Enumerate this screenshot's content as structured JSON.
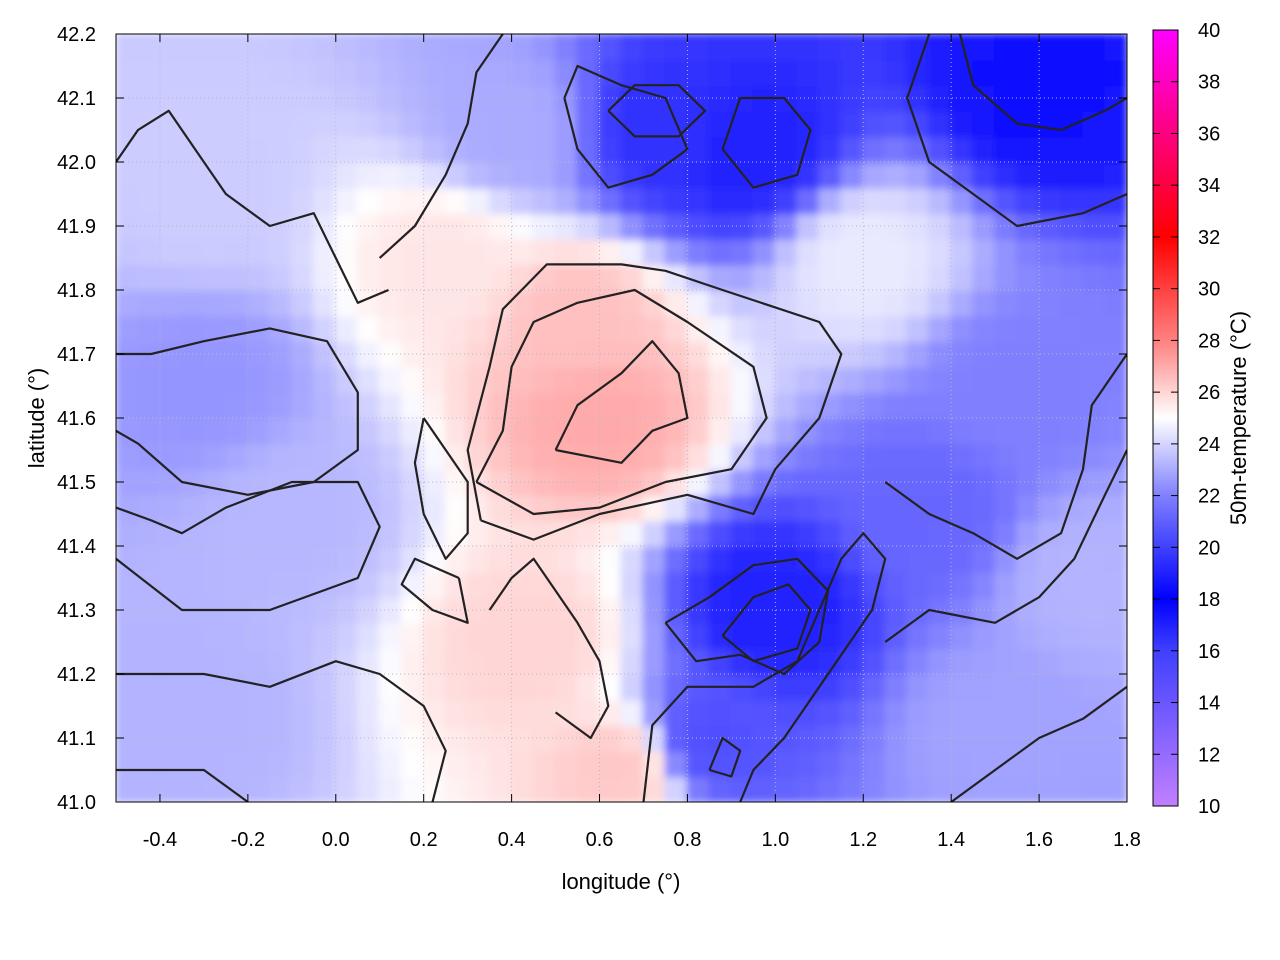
{
  "chart_data": {
    "type": "heatmap",
    "xlabel": "longitude (°)",
    "ylabel": "latitude (°)",
    "colorbar_label": "50m-temperature (°C)",
    "xlim": [
      -0.5,
      1.8
    ],
    "ylim": [
      41.0,
      42.2
    ],
    "x_ticks": [
      -0.4,
      -0.2,
      0.0,
      0.2,
      0.4,
      0.6,
      0.8,
      1.0,
      1.2,
      1.4,
      1.6,
      1.8
    ],
    "x_tick_labels": [
      "-0.4",
      "-0.2",
      "0.0",
      "0.2",
      "0.4",
      "0.6",
      "0.8",
      "1.0",
      "1.2",
      "1.4",
      "1.6",
      "1.8"
    ],
    "y_ticks": [
      41.0,
      41.1,
      41.2,
      41.3,
      41.4,
      41.5,
      41.6,
      41.7,
      41.8,
      41.9,
      42.0,
      42.1,
      42.2
    ],
    "y_tick_labels": [
      "41.0",
      "41.1",
      "41.2",
      "41.3",
      "41.4",
      "41.5",
      "41.6",
      "41.7",
      "41.8",
      "41.9",
      "42.0",
      "42.1",
      "42.2"
    ],
    "colorbar_range": [
      10,
      40
    ],
    "colorbar_ticks": [
      10,
      12,
      14,
      16,
      18,
      20,
      22,
      24,
      26,
      28,
      30,
      32,
      34,
      36,
      38,
      40
    ],
    "colorbar_tick_labels": [
      "10",
      "12",
      "14",
      "16",
      "18",
      "20",
      "22",
      "24",
      "26",
      "28",
      "30",
      "32",
      "34",
      "36",
      "38",
      "40"
    ],
    "colormap": [
      {
        "value": 10,
        "color": "#c080ff"
      },
      {
        "value": 16,
        "color": "#4040ff"
      },
      {
        "value": 18,
        "color": "#0000ff"
      },
      {
        "value": 22,
        "color": "#8080ff"
      },
      {
        "value": 25,
        "color": "#ffffff"
      },
      {
        "value": 28,
        "color": "#ff8080"
      },
      {
        "value": 32,
        "color": "#ff0000"
      },
      {
        "value": 36,
        "color": "#ff0080"
      },
      {
        "value": 40,
        "color": "#ff00ff"
      }
    ],
    "grid": true,
    "contour_color": "#222222",
    "sample_field": [
      {
        "lon": 0.6,
        "lat": 41.6,
        "temp": 27.0
      },
      {
        "lon": 0.55,
        "lat": 41.75,
        "temp": 26.5
      },
      {
        "lon": 0.25,
        "lat": 41.85,
        "temp": 25.6
      },
      {
        "lon": 0.45,
        "lat": 41.25,
        "temp": 26.0
      },
      {
        "lon": 0.65,
        "lat": 41.05,
        "temp": 26.3
      },
      {
        "lon": -0.3,
        "lat": 41.65,
        "temp": 22.5
      },
      {
        "lon": -0.3,
        "lat": 41.95,
        "temp": 23.8
      },
      {
        "lon": -0.1,
        "lat": 41.45,
        "temp": 23.3
      },
      {
        "lon": -0.35,
        "lat": 41.15,
        "temp": 23.2
      },
      {
        "lon": 1.0,
        "lat": 41.3,
        "temp": 19.0
      },
      {
        "lon": 0.85,
        "lat": 41.1,
        "temp": 20.5
      },
      {
        "lon": 1.35,
        "lat": 41.45,
        "temp": 21.2
      },
      {
        "lon": 1.55,
        "lat": 41.65,
        "temp": 22.0
      },
      {
        "lon": 1.6,
        "lat": 42.12,
        "temp": 18.5
      },
      {
        "lon": 0.75,
        "lat": 42.05,
        "temp": 19.5
      },
      {
        "lon": 0.95,
        "lat": 42.02,
        "temp": 19.0
      },
      {
        "lon": 0.4,
        "lat": 42.05,
        "temp": 23.0
      },
      {
        "lon": 1.5,
        "lat": 41.12,
        "temp": 22.8
      },
      {
        "lon": 1.2,
        "lat": 41.85,
        "temp": 24.5
      },
      {
        "lon": 1.7,
        "lat": 41.35,
        "temp": 23.2
      }
    ],
    "contours": [
      [
        [
          0.33,
          41.44
        ],
        [
          0.3,
          41.55
        ],
        [
          0.35,
          41.68
        ],
        [
          0.38,
          41.77
        ],
        [
          0.48,
          41.84
        ],
        [
          0.65,
          41.84
        ],
        [
          0.75,
          41.83
        ],
        [
          0.88,
          41.8
        ],
        [
          1.1,
          41.75
        ],
        [
          1.15,
          41.7
        ],
        [
          1.1,
          41.6
        ],
        [
          1.0,
          41.52
        ],
        [
          0.95,
          41.45
        ],
        [
          0.8,
          41.48
        ],
        [
          0.6,
          41.45
        ],
        [
          0.45,
          41.41
        ],
        [
          0.33,
          41.44
        ]
      ],
      [
        [
          0.32,
          41.5
        ],
        [
          0.38,
          41.58
        ],
        [
          0.4,
          41.68
        ],
        [
          0.45,
          41.75
        ],
        [
          0.55,
          41.78
        ],
        [
          0.68,
          41.8
        ],
        [
          0.8,
          41.75
        ],
        [
          0.95,
          41.68
        ],
        [
          0.98,
          41.6
        ],
        [
          0.9,
          41.52
        ],
        [
          0.75,
          41.5
        ],
        [
          0.6,
          41.46
        ],
        [
          0.45,
          41.45
        ],
        [
          0.32,
          41.5
        ]
      ],
      [
        [
          0.5,
          41.55
        ],
        [
          0.55,
          41.62
        ],
        [
          0.65,
          41.67
        ],
        [
          0.72,
          41.72
        ],
        [
          0.78,
          41.67
        ],
        [
          0.8,
          41.6
        ],
        [
          0.72,
          41.58
        ],
        [
          0.65,
          41.53
        ],
        [
          0.5,
          41.55
        ]
      ],
      [
        [
          -0.5,
          41.58
        ],
        [
          -0.45,
          41.56
        ],
        [
          -0.35,
          41.5
        ],
        [
          -0.2,
          41.48
        ],
        [
          -0.05,
          41.5
        ],
        [
          0.05,
          41.55
        ],
        [
          0.05,
          41.64
        ],
        [
          -0.02,
          41.72
        ],
        [
          -0.15,
          41.74
        ],
        [
          -0.3,
          41.72
        ],
        [
          -0.42,
          41.7
        ],
        [
          -0.5,
          41.7
        ]
      ],
      [
        [
          -0.5,
          41.38
        ],
        [
          -0.35,
          41.3
        ],
        [
          -0.15,
          41.3
        ],
        [
          0.05,
          41.35
        ],
        [
          0.1,
          41.43
        ],
        [
          0.05,
          41.5
        ],
        [
          -0.1,
          41.5
        ],
        [
          -0.25,
          41.46
        ],
        [
          -0.35,
          41.42
        ],
        [
          -0.42,
          41.44
        ],
        [
          -0.5,
          41.46
        ]
      ],
      [
        [
          0.75,
          41.28
        ],
        [
          0.85,
          41.32
        ],
        [
          0.95,
          41.37
        ],
        [
          1.05,
          41.38
        ],
        [
          1.12,
          41.33
        ],
        [
          1.1,
          41.25
        ],
        [
          1.02,
          41.2
        ],
        [
          0.92,
          41.23
        ],
        [
          0.82,
          41.22
        ],
        [
          0.75,
          41.28
        ]
      ],
      [
        [
          0.88,
          41.26
        ],
        [
          0.95,
          41.32
        ],
        [
          1.03,
          41.34
        ],
        [
          1.08,
          41.3
        ],
        [
          1.05,
          41.24
        ],
        [
          0.95,
          41.22
        ],
        [
          0.88,
          41.26
        ]
      ],
      [
        [
          0.7,
          41.0
        ],
        [
          0.72,
          41.12
        ],
        [
          0.8,
          41.18
        ],
        [
          0.95,
          41.18
        ],
        [
          1.05,
          41.22
        ],
        [
          1.1,
          41.3
        ],
        [
          1.15,
          41.38
        ],
        [
          1.2,
          41.42
        ],
        [
          1.25,
          41.38
        ],
        [
          1.22,
          41.3
        ],
        [
          1.12,
          41.2
        ],
        [
          1.02,
          41.1
        ],
        [
          0.95,
          41.05
        ],
        [
          0.92,
          41.0
        ]
      ],
      [
        [
          1.25,
          41.25
        ],
        [
          1.35,
          41.3
        ],
        [
          1.5,
          41.28
        ],
        [
          1.6,
          41.32
        ],
        [
          1.68,
          41.38
        ],
        [
          1.75,
          41.48
        ],
        [
          1.8,
          41.55
        ]
      ],
      [
        [
          1.25,
          41.5
        ],
        [
          1.35,
          41.45
        ],
        [
          1.45,
          41.42
        ],
        [
          1.55,
          41.38
        ],
        [
          1.65,
          41.42
        ],
        [
          1.7,
          41.52
        ],
        [
          1.72,
          41.62
        ],
        [
          1.8,
          41.7
        ]
      ],
      [
        [
          1.42,
          42.2
        ],
        [
          1.45,
          42.12
        ],
        [
          1.55,
          42.06
        ],
        [
          1.65,
          42.05
        ],
        [
          1.75,
          42.08
        ],
        [
          1.8,
          42.1
        ]
      ],
      [
        [
          1.35,
          42.2
        ],
        [
          1.3,
          42.1
        ],
        [
          1.35,
          42.0
        ],
        [
          1.45,
          41.95
        ],
        [
          1.55,
          41.9
        ],
        [
          1.7,
          41.92
        ],
        [
          1.8,
          41.95
        ]
      ],
      [
        [
          0.52,
          42.1
        ],
        [
          0.55,
          42.02
        ],
        [
          0.62,
          41.96
        ],
        [
          0.72,
          41.98
        ],
        [
          0.8,
          42.02
        ],
        [
          0.75,
          42.1
        ],
        [
          0.65,
          42.12
        ],
        [
          0.55,
          42.15
        ],
        [
          0.52,
          42.1
        ]
      ],
      [
        [
          0.62,
          42.08
        ],
        [
          0.68,
          42.04
        ],
        [
          0.78,
          42.04
        ],
        [
          0.84,
          42.08
        ],
        [
          0.78,
          42.12
        ],
        [
          0.68,
          42.12
        ],
        [
          0.62,
          42.08
        ]
      ],
      [
        [
          0.88,
          42.02
        ],
        [
          0.95,
          41.96
        ],
        [
          1.05,
          41.98
        ],
        [
          1.08,
          42.05
        ],
        [
          1.02,
          42.1
        ],
        [
          0.92,
          42.1
        ],
        [
          0.88,
          42.02
        ]
      ],
      [
        [
          0.1,
          41.85
        ],
        [
          0.18,
          41.9
        ],
        [
          0.25,
          41.98
        ],
        [
          0.3,
          42.06
        ],
        [
          0.32,
          42.14
        ],
        [
          0.38,
          42.2
        ]
      ],
      [
        [
          -0.5,
          42.0
        ],
        [
          -0.45,
          42.05
        ],
        [
          -0.38,
          42.08
        ],
        [
          -0.32,
          42.02
        ],
        [
          -0.25,
          41.95
        ],
        [
          -0.15,
          41.9
        ],
        [
          -0.05,
          41.92
        ],
        [
          0.0,
          41.85
        ],
        [
          0.05,
          41.78
        ],
        [
          0.12,
          41.8
        ]
      ],
      [
        [
          0.2,
          41.6
        ],
        [
          0.25,
          41.55
        ],
        [
          0.3,
          41.5
        ],
        [
          0.3,
          41.42
        ],
        [
          0.25,
          41.38
        ],
        [
          0.2,
          41.45
        ],
        [
          0.18,
          41.53
        ],
        [
          0.2,
          41.6
        ]
      ],
      [
        [
          0.35,
          41.3
        ],
        [
          0.4,
          41.35
        ],
        [
          0.45,
          41.38
        ],
        [
          0.5,
          41.33
        ],
        [
          0.55,
          41.28
        ],
        [
          0.6,
          41.22
        ],
        [
          0.62,
          41.15
        ],
        [
          0.58,
          41.1
        ],
        [
          0.5,
          41.14
        ]
      ],
      [
        [
          0.28,
          41.35
        ],
        [
          0.3,
          41.28
        ],
        [
          0.22,
          41.3
        ],
        [
          0.15,
          41.34
        ],
        [
          0.18,
          41.38
        ],
        [
          0.28,
          41.35
        ]
      ],
      [
        [
          -0.5,
          41.2
        ],
        [
          -0.3,
          41.2
        ],
        [
          -0.15,
          41.18
        ],
        [
          0.0,
          41.22
        ],
        [
          0.1,
          41.2
        ],
        [
          0.2,
          41.15
        ],
        [
          0.25,
          41.08
        ],
        [
          0.22,
          41.0
        ]
      ],
      [
        [
          -0.5,
          41.05
        ],
        [
          -0.3,
          41.05
        ],
        [
          -0.2,
          41.0
        ]
      ],
      [
        [
          1.4,
          41.0
        ],
        [
          1.5,
          41.05
        ],
        [
          1.6,
          41.1
        ],
        [
          1.7,
          41.13
        ],
        [
          1.8,
          41.18
        ]
      ],
      [
        [
          0.85,
          41.05
        ],
        [
          0.88,
          41.1
        ],
        [
          0.92,
          41.08
        ],
        [
          0.9,
          41.04
        ],
        [
          0.85,
          41.05
        ]
      ]
    ]
  }
}
